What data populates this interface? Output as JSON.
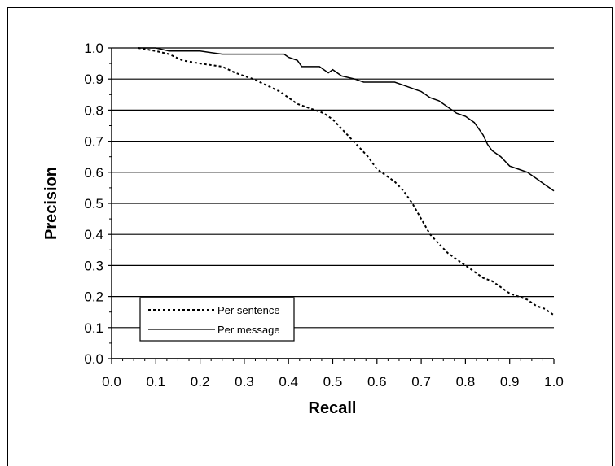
{
  "chart_data": {
    "type": "line",
    "title": "",
    "xlabel": "Recall",
    "ylabel": "Precision",
    "xlim": [
      0,
      1
    ],
    "ylim": [
      0,
      1
    ],
    "x_ticks": [
      "0.0",
      "0.1",
      "0.2",
      "0.3",
      "0.4",
      "0.5",
      "0.6",
      "0.7",
      "0.8",
      "0.9",
      "1.0"
    ],
    "y_ticks": [
      "0.0",
      "0.1",
      "0.2",
      "0.3",
      "0.4",
      "0.5",
      "0.6",
      "0.7",
      "0.8",
      "0.9",
      "1.0"
    ],
    "grid": "horizontal",
    "legend_position": "bottom-left",
    "series": [
      {
        "name": "Per sentence",
        "style": "dashed",
        "x": [
          0.06,
          0.1,
          0.13,
          0.16,
          0.2,
          0.25,
          0.28,
          0.32,
          0.35,
          0.38,
          0.4,
          0.42,
          0.44,
          0.46,
          0.48,
          0.5,
          0.52,
          0.54,
          0.56,
          0.58,
          0.6,
          0.62,
          0.64,
          0.66,
          0.68,
          0.7,
          0.72,
          0.74,
          0.76,
          0.78,
          0.8,
          0.82,
          0.84,
          0.86,
          0.88,
          0.9,
          0.92,
          0.94,
          0.96,
          0.98,
          1.0
        ],
        "y": [
          1.0,
          0.99,
          0.98,
          0.96,
          0.95,
          0.94,
          0.92,
          0.9,
          0.88,
          0.86,
          0.84,
          0.82,
          0.81,
          0.8,
          0.79,
          0.77,
          0.74,
          0.71,
          0.68,
          0.65,
          0.61,
          0.59,
          0.57,
          0.54,
          0.5,
          0.45,
          0.4,
          0.37,
          0.34,
          0.32,
          0.3,
          0.28,
          0.26,
          0.25,
          0.23,
          0.21,
          0.2,
          0.19,
          0.17,
          0.16,
          0.14
        ]
      },
      {
        "name": "Per message",
        "style": "solid",
        "x": [
          0.06,
          0.1,
          0.13,
          0.16,
          0.2,
          0.25,
          0.3,
          0.35,
          0.39,
          0.4,
          0.42,
          0.43,
          0.47,
          0.48,
          0.49,
          0.5,
          0.52,
          0.55,
          0.57,
          0.6,
          0.64,
          0.66,
          0.68,
          0.7,
          0.72,
          0.74,
          0.76,
          0.78,
          0.8,
          0.82,
          0.83,
          0.84,
          0.85,
          0.86,
          0.88,
          0.9,
          0.92,
          0.94,
          0.96,
          0.98,
          1.0
        ],
        "y": [
          1.0,
          1.0,
          0.99,
          0.99,
          0.99,
          0.98,
          0.98,
          0.98,
          0.98,
          0.97,
          0.96,
          0.94,
          0.94,
          0.93,
          0.92,
          0.93,
          0.91,
          0.9,
          0.89,
          0.89,
          0.89,
          0.88,
          0.87,
          0.86,
          0.84,
          0.83,
          0.81,
          0.79,
          0.78,
          0.76,
          0.74,
          0.72,
          0.69,
          0.67,
          0.65,
          0.62,
          0.61,
          0.6,
          0.58,
          0.56,
          0.54
        ]
      }
    ]
  }
}
